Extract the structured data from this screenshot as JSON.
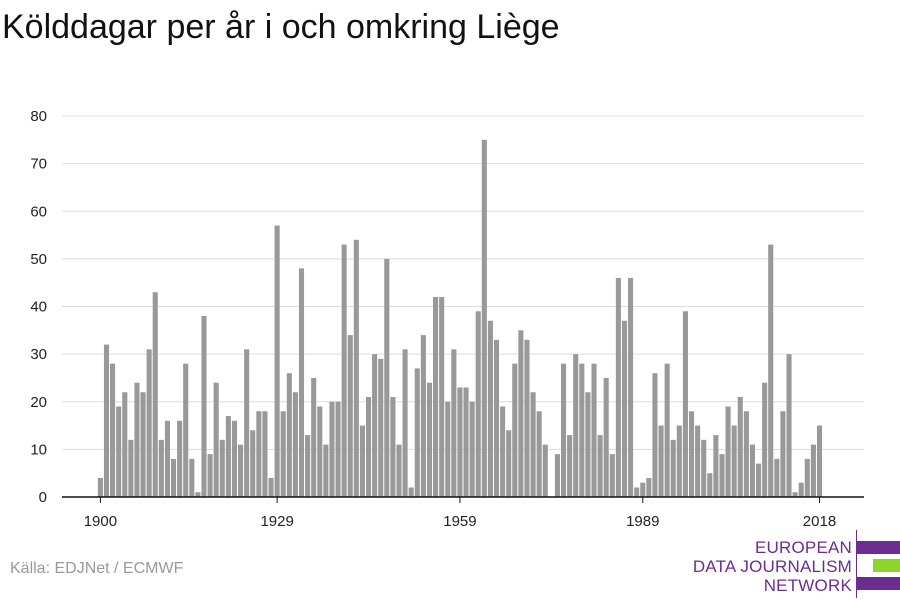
{
  "title": "Kölddagar per år i och omkring Liège",
  "source": "Källa: EDJNet / ECMWF",
  "logo": {
    "line1": "EUROPEAN",
    "line2": "DATA JOURNALISM",
    "line3": "NETWORK",
    "colors": {
      "purple": "#6b2d91",
      "green": "#8fd42a"
    }
  },
  "chart_data": {
    "type": "bar",
    "x_start": 1900,
    "x_end": 2018,
    "values": [
      4,
      32,
      28,
      19,
      22,
      12,
      24,
      22,
      31,
      43,
      12,
      16,
      8,
      16,
      28,
      8,
      1,
      38,
      9,
      24,
      12,
      17,
      16,
      11,
      31,
      14,
      18,
      18,
      4,
      57,
      18,
      26,
      22,
      48,
      13,
      25,
      19,
      11,
      20,
      20,
      53,
      34,
      54,
      15,
      21,
      30,
      29,
      50,
      21,
      11,
      31,
      2,
      27,
      34,
      24,
      42,
      42,
      20,
      31,
      23,
      23,
      20,
      39,
      75,
      37,
      33,
      19,
      14,
      28,
      35,
      33,
      22,
      18,
      11,
      0,
      9,
      28,
      13,
      30,
      28,
      22,
      28,
      13,
      25,
      9,
      46,
      37,
      46,
      2,
      3,
      4,
      26,
      15,
      28,
      12,
      15,
      39,
      18,
      15,
      12,
      5,
      13,
      9,
      19,
      15,
      21,
      18,
      11,
      7,
      24,
      53,
      8,
      18,
      30,
      1,
      3,
      8,
      11,
      15
    ],
    "xtick_labels": [
      "1900",
      "1929",
      "1959",
      "1989",
      "2018"
    ],
    "ylim": [
      0,
      80
    ],
    "yticks": [
      0,
      10,
      20,
      30,
      40,
      50,
      60,
      70,
      80
    ],
    "grid": true,
    "bar_color": "#999999",
    "xlabel": "",
    "ylabel": ""
  }
}
